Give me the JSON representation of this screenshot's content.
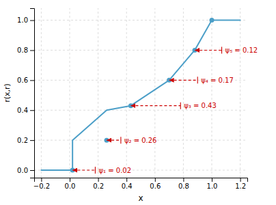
{
  "chart_data": {
    "type": "line",
    "x_label": "x",
    "y_label": "r(x,r)",
    "series": [
      {
        "type": "line",
        "color": "#4c9fc8",
        "line_style": "solid",
        "x": [
          -0.2,
          0.02,
          0.02,
          0.26,
          0.43,
          0.7,
          0.88,
          1.0,
          1.2
        ],
        "values": [
          0.0,
          0.0,
          0.2,
          0.4,
          0.43,
          0.6,
          0.8,
          1.0,
          1.0
        ]
      },
      {
        "type": "scatter",
        "color": "#4c9fc8",
        "marker": "circle",
        "x": [
          0.02,
          0.26,
          0.43,
          0.7,
          0.88,
          1.0
        ],
        "values": [
          0.0,
          0.2,
          0.43,
          0.6,
          0.8,
          1.0
        ]
      }
    ],
    "annotations": [
      {
        "text": "ψ₁ = 0.02",
        "x": 0.02,
        "y": 0.0,
        "x_end": 0.18,
        "color": "#cc0000"
      },
      {
        "text": "ψ₂ = 0.26",
        "x": 0.26,
        "y": 0.2,
        "x_end": 0.36,
        "color": "#cc0000"
      },
      {
        "text": "ψ₃ = 0.43",
        "x": 0.43,
        "y": 0.43,
        "x_end": 0.78,
        "color": "#cc0000"
      },
      {
        "text": "ψ₄ = 0.17",
        "x": 0.7,
        "y": 0.6,
        "x_end": 0.9,
        "color": "#cc0000"
      },
      {
        "text": "ψ₅ = 0.12",
        "x": 0.88,
        "y": 0.8,
        "x_end": 1.07,
        "color": "#cc0000"
      }
    ],
    "xlim": [
      -0.25,
      1.25
    ],
    "ylim": [
      -0.05,
      1.08
    ],
    "xticks": [
      {
        "value": -0.2,
        "label": "−0.2"
      },
      {
        "value": 0.0,
        "label": "0.0"
      },
      0.2,
      0.4,
      0.6,
      0.8,
      {
        "value": 1.0,
        "label": "1.0"
      },
      1.2
    ],
    "yticks": [
      {
        "value": 0.0,
        "label": "0.0"
      },
      0.2,
      0.4,
      0.6,
      0.8,
      {
        "value": 1.0,
        "label": "1.0"
      }
    ],
    "grid": true
  }
}
